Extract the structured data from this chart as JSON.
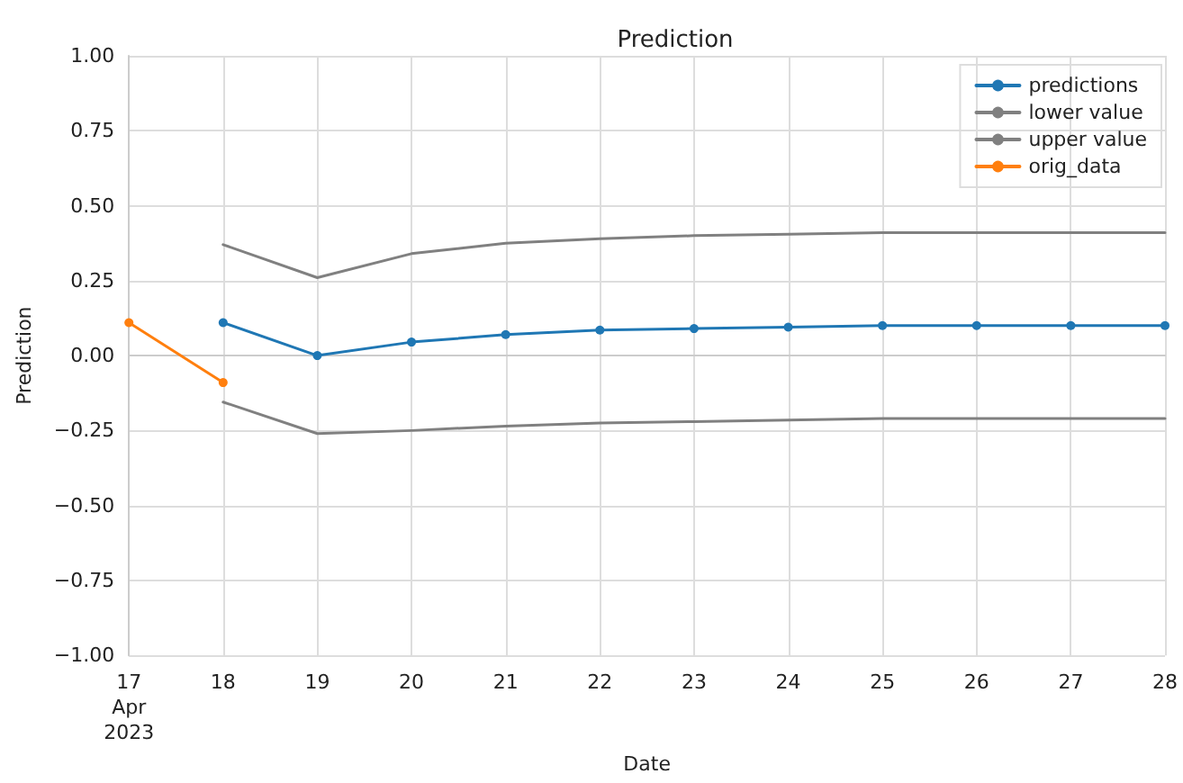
{
  "chart_data": {
    "type": "line",
    "title": "Prediction",
    "xlabel": "Date",
    "ylabel": "Prediction",
    "xlim": [
      "2023-04-17",
      "2023-04-28"
    ],
    "xticks": [
      {
        "value": "2023-04-17",
        "label": "17\nApr\n2023"
      },
      {
        "value": "2023-04-18",
        "label": "18"
      },
      {
        "value": "2023-04-19",
        "label": "19"
      },
      {
        "value": "2023-04-20",
        "label": "20"
      },
      {
        "value": "2023-04-21",
        "label": "21"
      },
      {
        "value": "2023-04-22",
        "label": "22"
      },
      {
        "value": "2023-04-23",
        "label": "23"
      },
      {
        "value": "2023-04-24",
        "label": "24"
      },
      {
        "value": "2023-04-25",
        "label": "25"
      },
      {
        "value": "2023-04-26",
        "label": "26"
      },
      {
        "value": "2023-04-27",
        "label": "27"
      },
      {
        "value": "2023-04-28",
        "label": "28"
      }
    ],
    "ylim": [
      -1,
      1
    ],
    "yticks": [
      {
        "value": -1,
        "label": "−1.00"
      },
      {
        "value": -0.75,
        "label": "−0.75"
      },
      {
        "value": -0.5,
        "label": "−0.50"
      },
      {
        "value": -0.25,
        "label": "−0.25"
      },
      {
        "value": 0,
        "label": "0.00"
      },
      {
        "value": 0.25,
        "label": "0.25"
      },
      {
        "value": 0.5,
        "label": "0.50"
      },
      {
        "value": 0.75,
        "label": "0.75"
      },
      {
        "value": 1,
        "label": "1.00"
      }
    ],
    "grid": true,
    "legend": "top right",
    "line_style": "solid",
    "series": [
      {
        "name": "predictions",
        "color": "#1f77b4",
        "marker": "circle",
        "x": [
          "2023-04-18",
          "2023-04-19",
          "2023-04-20",
          "2023-04-21",
          "2023-04-22",
          "2023-04-23",
          "2023-04-24",
          "2023-04-25",
          "2023-04-26",
          "2023-04-27",
          "2023-04-28"
        ],
        "values": [
          0.11,
          0.0,
          0.045,
          0.07,
          0.085,
          0.09,
          0.095,
          0.1,
          0.1,
          0.1,
          0.1
        ]
      },
      {
        "name": "lower value",
        "color": "#808080",
        "marker": "none",
        "x": [
          "2023-04-18",
          "2023-04-19",
          "2023-04-20",
          "2023-04-21",
          "2023-04-22",
          "2023-04-23",
          "2023-04-24",
          "2023-04-25",
          "2023-04-26",
          "2023-04-27",
          "2023-04-28"
        ],
        "values": [
          -0.155,
          -0.26,
          -0.25,
          -0.235,
          -0.225,
          -0.22,
          -0.215,
          -0.21,
          -0.21,
          -0.21,
          -0.21
        ]
      },
      {
        "name": "upper value",
        "color": "#808080",
        "marker": "none",
        "x": [
          "2023-04-18",
          "2023-04-19",
          "2023-04-20",
          "2023-04-21",
          "2023-04-22",
          "2023-04-23",
          "2023-04-24",
          "2023-04-25",
          "2023-04-26",
          "2023-04-27",
          "2023-04-28"
        ],
        "values": [
          0.37,
          0.26,
          0.34,
          0.375,
          0.39,
          0.4,
          0.405,
          0.41,
          0.41,
          0.41,
          0.41
        ]
      },
      {
        "name": "orig_data",
        "color": "#ff7f0e",
        "marker": "circle",
        "x": [
          "2023-04-17",
          "2023-04-18"
        ],
        "values": [
          0.11,
          -0.09
        ]
      }
    ]
  }
}
